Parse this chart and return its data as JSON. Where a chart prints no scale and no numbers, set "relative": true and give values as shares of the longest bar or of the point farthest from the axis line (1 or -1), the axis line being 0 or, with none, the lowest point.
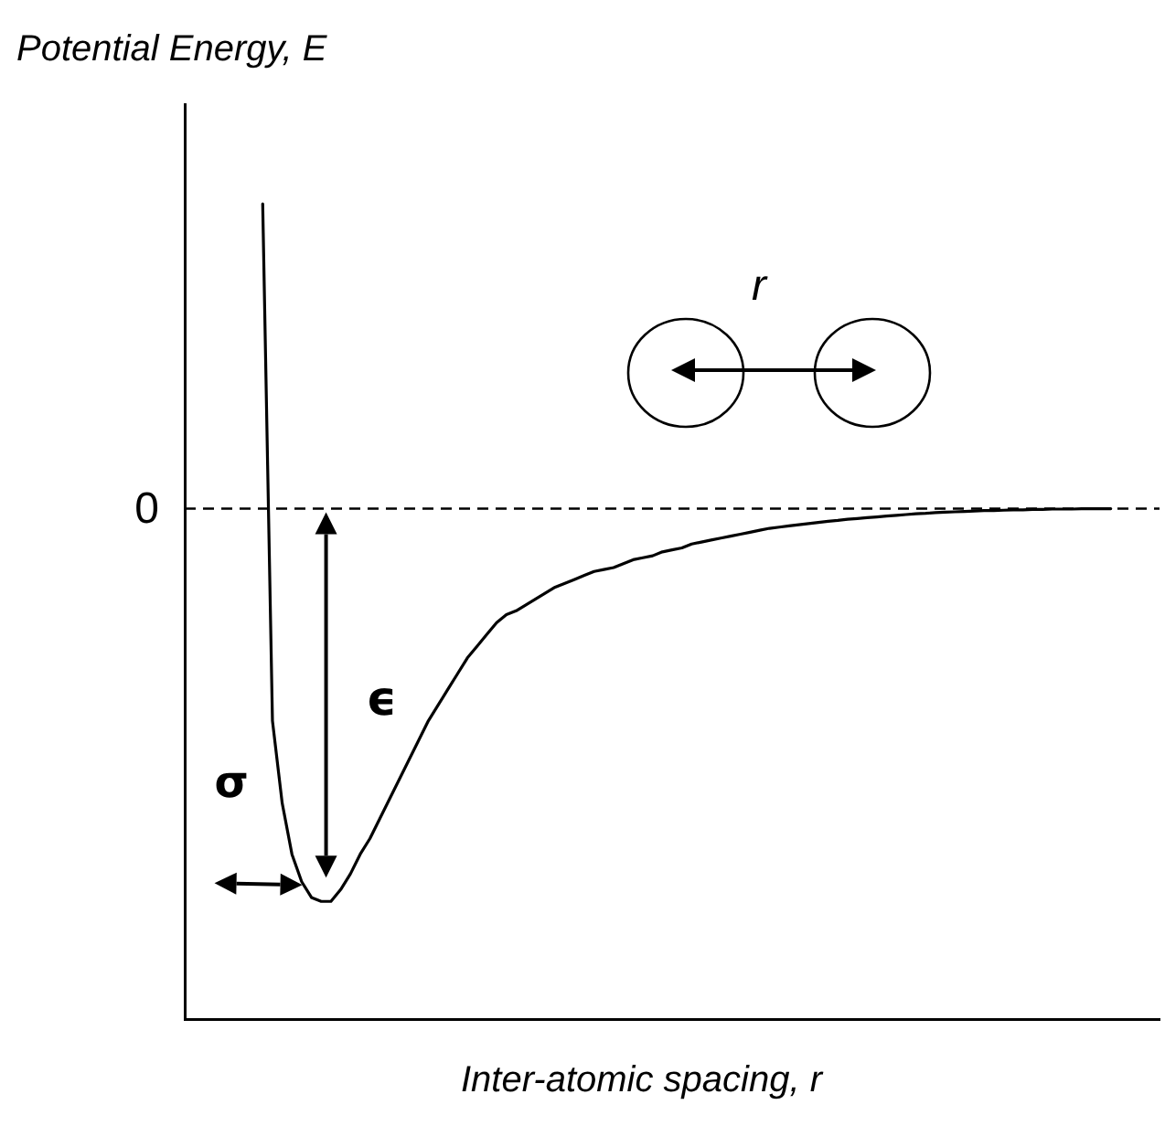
{
  "chart_data": {
    "type": "line",
    "relative": true,
    "xlabel": "Inter-atomic spacing, r",
    "ylabel": "Potential Energy, E",
    "categories": [
      null,
      null,
      null,
      null,
      null,
      null,
      null,
      null,
      null,
      null,
      null,
      null,
      null,
      null,
      null,
      null,
      null,
      null,
      null,
      null,
      null,
      null,
      null,
      null,
      null,
      null,
      null,
      null,
      null,
      null,
      null,
      null,
      null,
      null,
      null,
      null,
      null,
      null,
      null,
      null,
      null,
      null,
      null,
      null,
      null,
      null,
      null,
      null,
      null,
      null,
      null,
      null,
      null,
      null,
      null,
      null,
      null,
      null,
      null,
      null,
      null,
      null,
      null,
      null,
      null,
      null,
      null,
      null,
      null,
      null,
      null,
      null,
      null,
      null,
      null,
      null,
      null,
      null,
      null,
      null,
      null,
      null,
      null,
      null,
      null,
      null,
      null,
      null,
      null,
      null,
      null,
      null,
      null,
      null,
      null,
      null,
      null,
      null,
      null,
      null,
      null
    ],
    "series": [
      {
        "color": "#000000",
        "values": [
          null,
          null,
          null,
          null,
          null,
          null,
          null,
          null,
          0.776,
          -0.54,
          -0.75,
          -0.88,
          -0.95,
          -0.99,
          -1,
          -1,
          -0.97,
          -0.93,
          -0.88,
          -0.84,
          -0.79,
          -0.74,
          -0.69,
          -0.64,
          -0.59,
          -0.54,
          -0.5,
          -0.46,
          -0.42,
          -0.38,
          -0.35,
          -0.32,
          -0.29,
          -0.27,
          -0.26,
          -0.245,
          -0.23,
          -0.215,
          -0.2,
          -0.19,
          -0.18,
          -0.17,
          -0.16,
          -0.155,
          -0.15,
          -0.14,
          -0.13,
          -0.125,
          -0.12,
          -0.11,
          -0.105,
          -0.1,
          -0.09,
          -0.085,
          -0.08,
          -0.075,
          -0.07,
          -0.065,
          -0.06,
          -0.055,
          -0.05,
          -0.047,
          -0.044,
          -0.041,
          -0.038,
          -0.035,
          -0.032,
          -0.03,
          -0.027,
          -0.025,
          -0.023,
          -0.021,
          -0.019,
          -0.017,
          -0.015,
          -0.013,
          -0.012,
          -0.01,
          -0.009,
          -0.008,
          -0.007,
          -0.006,
          -0.005,
          -0.005,
          -0.004,
          -0.003,
          -0.003,
          -0.002,
          -0.002,
          -0.001,
          -0.001,
          -0.001,
          0,
          0,
          0,
          0,
          null,
          null,
          null,
          null,
          null
        ]
      }
    ],
    "ref_lines": [
      {
        "axis": "y",
        "value": 0,
        "label": "0",
        "color": "#000000",
        "line_style": "dashed"
      }
    ],
    "annotations": [
      "r",
      "ϵ",
      "σ"
    ],
    "grid": false,
    "legend": false,
    "marker": "none",
    "line_style": "solid"
  }
}
